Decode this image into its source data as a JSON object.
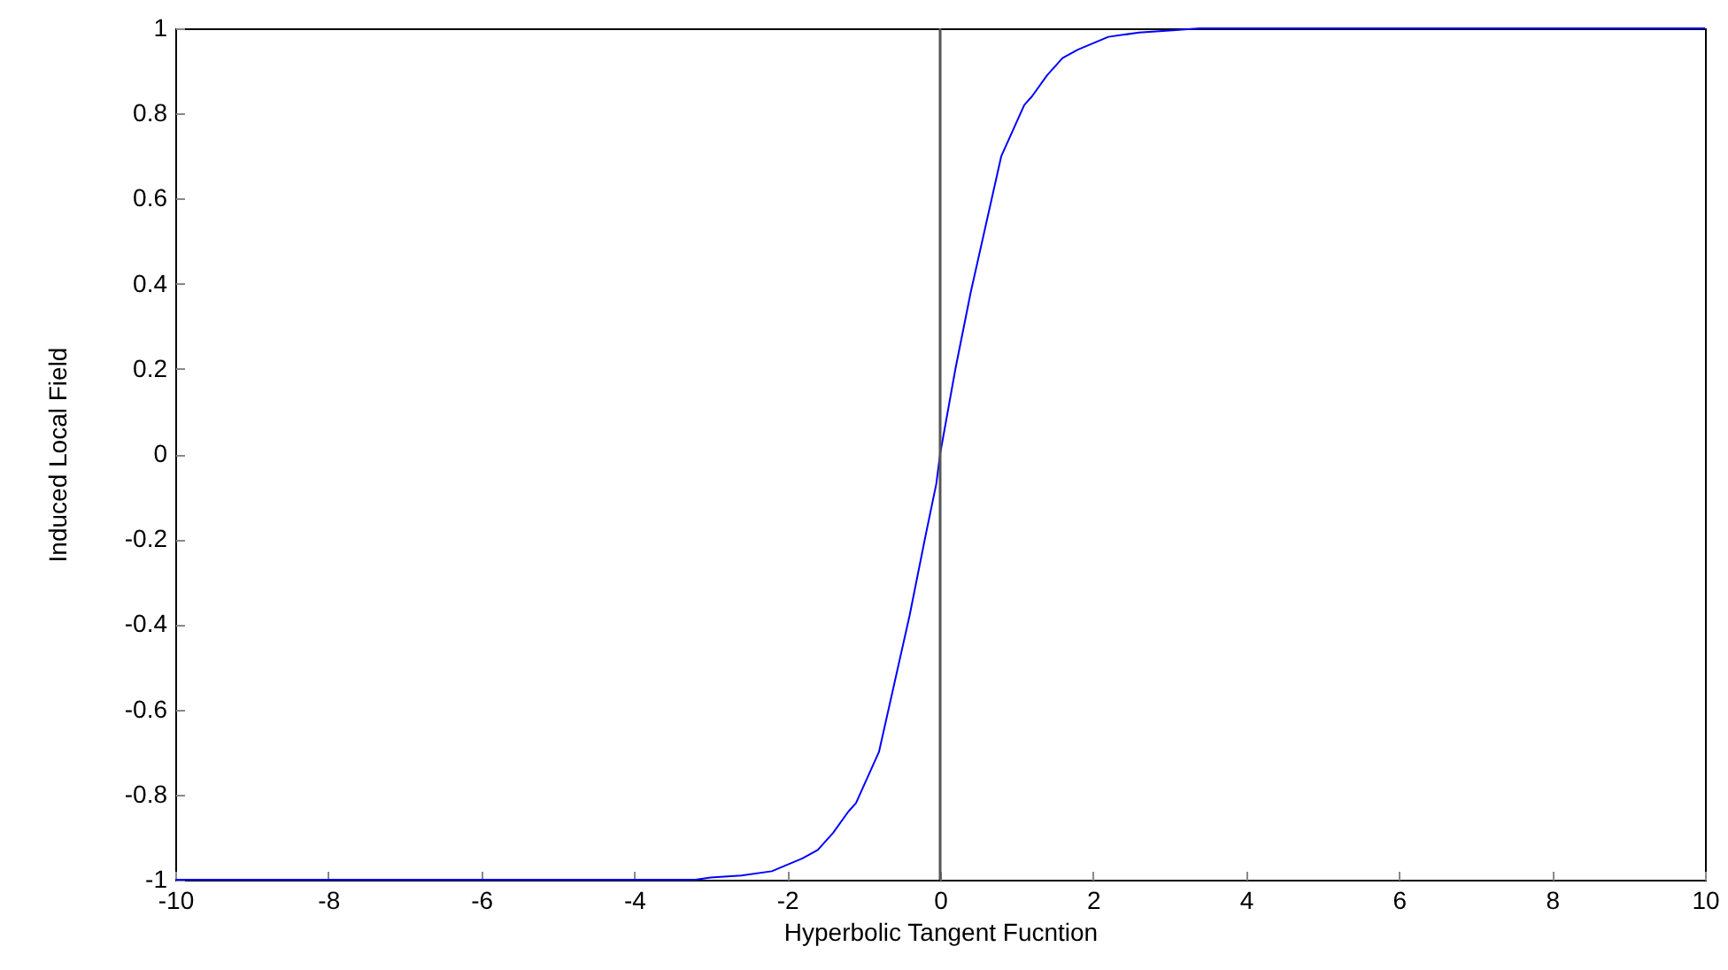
{
  "chart_data": {
    "type": "line",
    "xlabel": "Hyperbolic Tangent Fucntion",
    "ylabel": "Induced Local Field",
    "x": [
      -10,
      -3.2,
      -3,
      -2.6,
      -2.2,
      -1.8,
      -1.6,
      -1.4,
      -1.2,
      -1.1,
      -0.8,
      -0.6,
      -0.4,
      -0.2,
      -0.05,
      0,
      0.2,
      0.4,
      0.6,
      0.8,
      1.1,
      1.2,
      1.4,
      1.6,
      1.8,
      2.2,
      2.6,
      3,
      3.4,
      10
    ],
    "series": [
      {
        "color": "#0000ff",
        "values": [
          -1,
          -1,
          -0.995,
          -0.99,
          -0.98,
          -0.95,
          -0.93,
          -0.89,
          -0.84,
          -0.82,
          -0.7,
          -0.54,
          -0.38,
          -0.2,
          -0.07,
          0,
          0.2,
          0.38,
          0.54,
          0.7,
          0.82,
          0.84,
          0.89,
          0.93,
          0.95,
          0.98,
          0.99,
          0.995,
          1,
          1
        ]
      }
    ],
    "xlim": [
      -10,
      10
    ],
    "xticks": [
      -10,
      -8,
      -6,
      -4,
      -2,
      0,
      2,
      4,
      6,
      8,
      10
    ],
    "ylim": [
      -1,
      1
    ],
    "yticks": [
      -1,
      -0.8,
      -0.6,
      -0.4,
      -0.2,
      0,
      0.2,
      0.4,
      0.6,
      0.8,
      1
    ],
    "ref_lines": [
      {
        "axis": "x",
        "value": 0,
        "color": "#555555"
      }
    ],
    "grid": false,
    "marker": "none",
    "line_style": "solid"
  }
}
